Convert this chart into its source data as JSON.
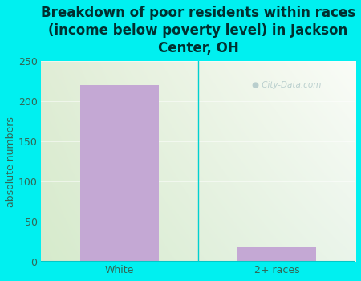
{
  "categories": [
    "White",
    "2+ races"
  ],
  "values": [
    220,
    18
  ],
  "bar_color": "#c4a8d4",
  "title": "Breakdown of poor residents within races\n(income below poverty level) in Jackson\nCenter, OH",
  "ylabel": "absolute numbers",
  "ylim": [
    0,
    250
  ],
  "yticks": [
    0,
    50,
    100,
    150,
    200,
    250
  ],
  "background_color": "#00f0f0",
  "plot_bg_topleft": "#e0eed8",
  "plot_bg_topright": "#f8f8f4",
  "plot_bg_bottomleft": "#d8ecd0",
  "plot_bg_bottomright": "#f0f8f0",
  "title_color": "#003030",
  "axis_color": "#00d0d0",
  "tick_color": "#336655",
  "ylabel_color": "#336655",
  "watermark_text": "City-Data.com",
  "watermark_color": "#b0c8c8",
  "title_fontsize": 12,
  "ylabel_fontsize": 9,
  "tick_fontsize": 9,
  "separator_color": "#00d0d0",
  "bottom_line_color": "#00c8c8"
}
